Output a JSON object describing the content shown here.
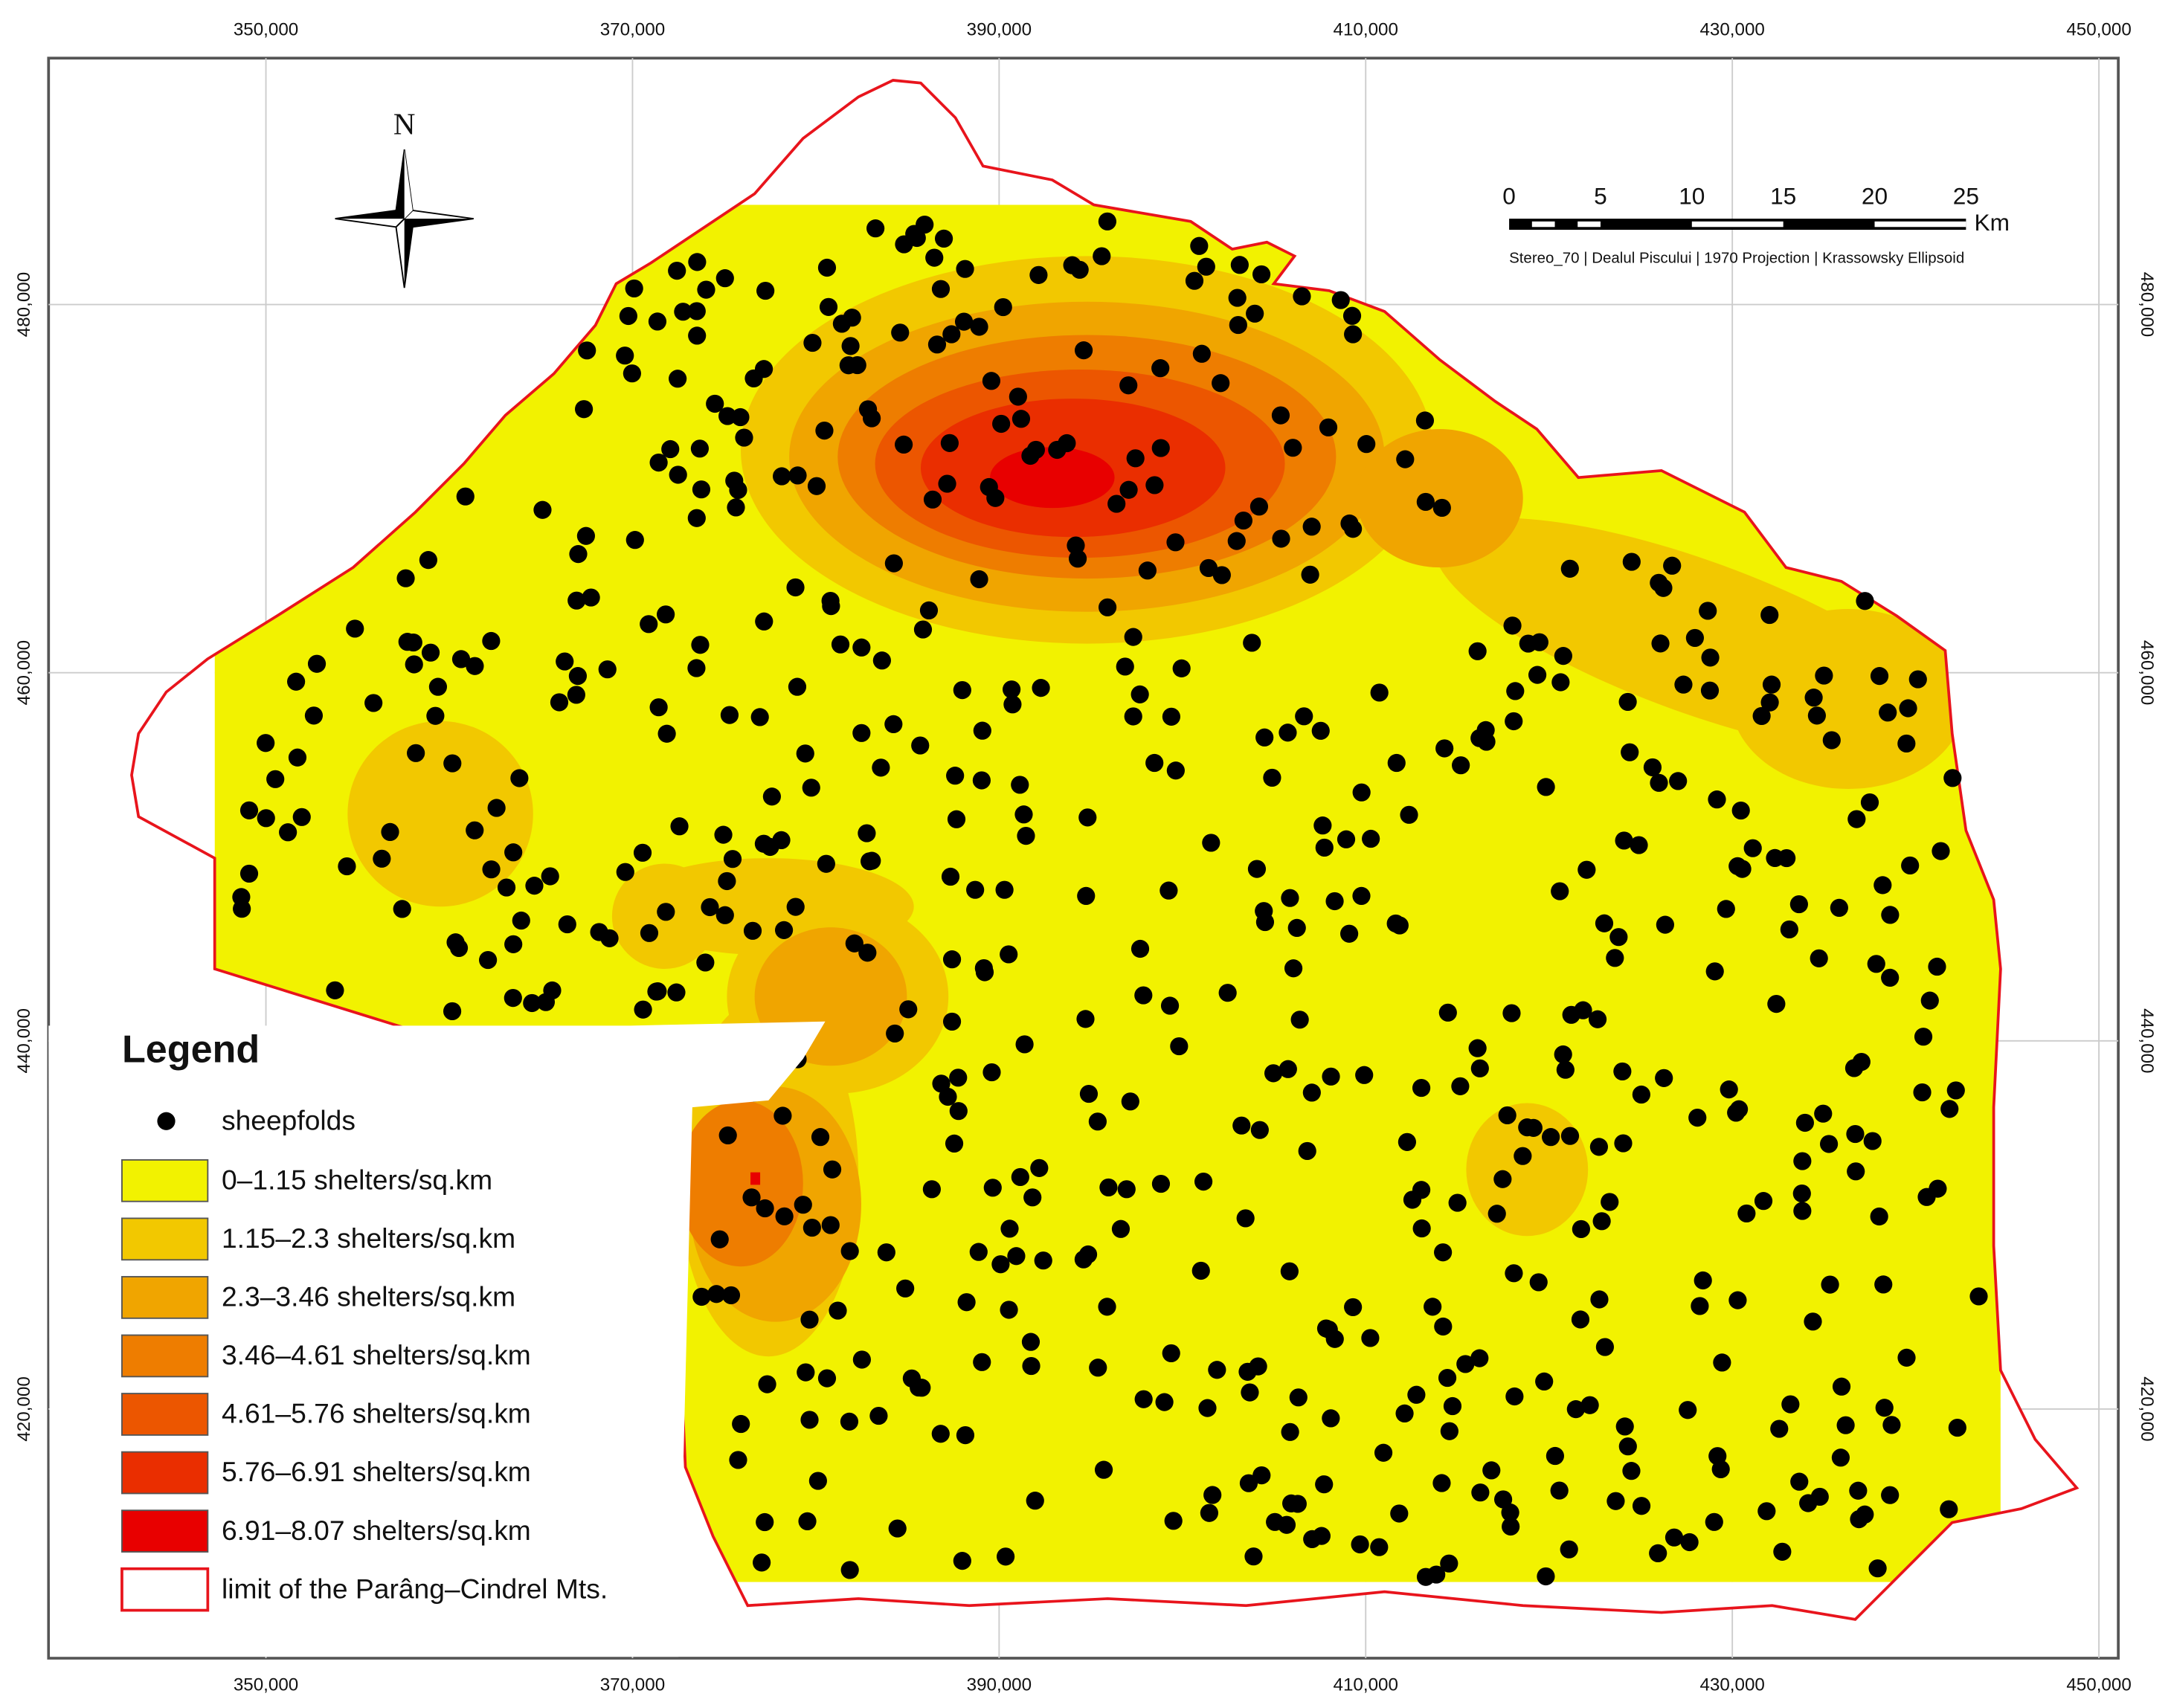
{
  "map": {
    "xticks": [
      {
        "value": 350000,
        "label": "350,000"
      },
      {
        "value": 370000,
        "label": "370,000"
      },
      {
        "value": 390000,
        "label": "390,000"
      },
      {
        "value": 410000,
        "label": "410,000"
      },
      {
        "value": 430000,
        "label": "430,000"
      },
      {
        "value": 450000,
        "label": "450,000"
      }
    ],
    "yticks": [
      {
        "value": 420000,
        "label": "420,000"
      },
      {
        "value": 440000,
        "label": "440,000"
      },
      {
        "value": 460000,
        "label": "460,000"
      },
      {
        "value": 480000,
        "label": "480,000"
      }
    ],
    "grid": true,
    "north": "N",
    "scale_bar": {
      "ticks": [
        0,
        5,
        10,
        15,
        20,
        25
      ],
      "unit": "Km"
    },
    "projection": "Stereo_70 | Dealul Piscului | 1970 Projection | Krassowsky Ellipsoid",
    "legend": {
      "title": "Legend",
      "points": "sheepfolds",
      "classes": [
        {
          "label": "0–1.15 shelters/sq.km",
          "color": "#f2f200"
        },
        {
          "label": "1.15–2.3 shelters/sq.km",
          "color": "#f2c800"
        },
        {
          "label": "2.3–3.46 shelters/sq.km",
          "color": "#f0a500"
        },
        {
          "label": "3.46–4.61 shelters/sq.km",
          "color": "#ee7d00"
        },
        {
          "label": "4.61–5.76 shelters/sq.km",
          "color": "#ec5600"
        },
        {
          "label": "5.76–6.91 shelters/sq.km",
          "color": "#ea2e00"
        },
        {
          "label": "6.91–8.07 shelters/sq.km",
          "color": "#e80000"
        }
      ],
      "limit": "limit of the Parâng–Cindrel Mts."
    }
  }
}
